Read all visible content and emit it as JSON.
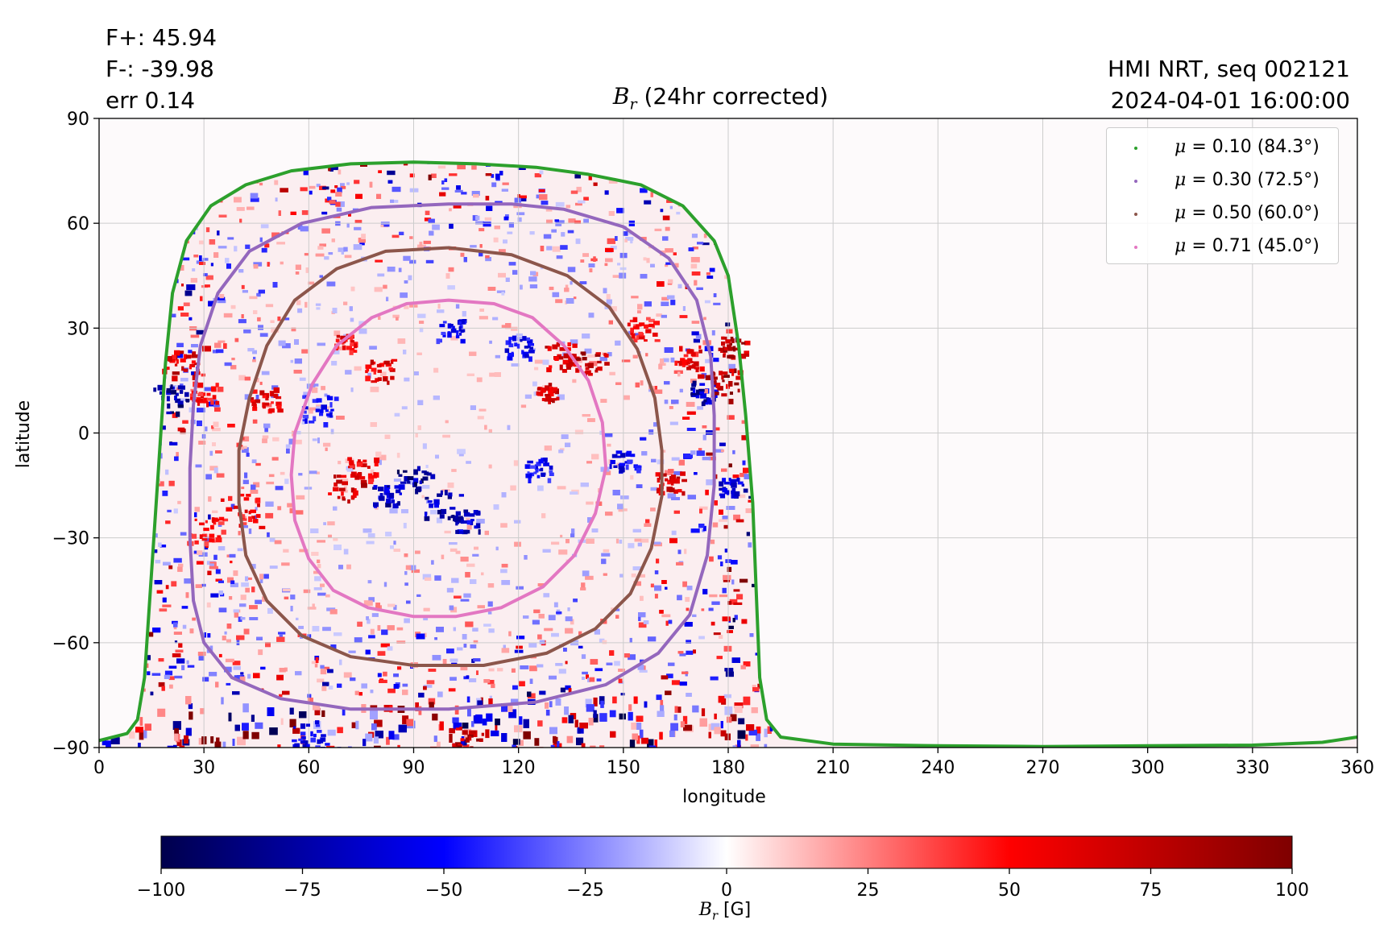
{
  "stats": {
    "flux_plus": "F+: 45.94",
    "flux_minus": "F-: -39.98",
    "error": "err 0.14"
  },
  "info": {
    "source": "HMI NRT, seq 002121",
    "timestamp": "2024-04-01 16:00:00"
  },
  "colors": {
    "mu_010": "#2ca02c",
    "mu_030": "#9467bd",
    "mu_050": "#8c564b",
    "mu_071": "#e377c2",
    "cmap_negative": "#00004c",
    "cmap_zero": "#ffffff",
    "cmap_positive": "#7f0000",
    "grid": "#cccccc"
  },
  "chart_data": {
    "type": "heatmap",
    "title_symbol": "B",
    "title_subscript": "r",
    "title_suffix": " (24hr corrected)",
    "xlabel": "longitude",
    "ylabel": "latitude",
    "xlim": [
      0,
      360
    ],
    "ylim": [
      -90,
      90
    ],
    "xticks": [
      0,
      30,
      60,
      90,
      120,
      150,
      180,
      210,
      240,
      270,
      300,
      330,
      360
    ],
    "yticks": [
      90,
      60,
      30,
      0,
      -30,
      -60,
      -90
    ],
    "ytick_labels": [
      "90",
      "60",
      "30",
      "0",
      "−30",
      "−60",
      "−90"
    ],
    "grid": true,
    "legend_position": "top-right",
    "legend": [
      {
        "mu": "0.10",
        "label_prefix": "= 0.10 (84.3",
        "label_suffix": ")",
        "color_key": "mu_010"
      },
      {
        "mu": "0.30",
        "label_prefix": "= 0.30 (72.5",
        "label_suffix": ")",
        "color_key": "mu_030"
      },
      {
        "mu": "0.50",
        "label_prefix": "= 0.50 (60.0",
        "label_suffix": ")",
        "color_key": "mu_050"
      },
      {
        "mu": "0.71",
        "label_prefix": "= 0.71 (45.0",
        "label_suffix": ")",
        "color_key": "mu_071"
      }
    ],
    "mu_contours": [
      {
        "name": "mu_010",
        "points": [
          [
            0,
            -88
          ],
          [
            8,
            -86
          ],
          [
            11,
            -82
          ],
          [
            13,
            -70
          ],
          [
            15,
            -40
          ],
          [
            17,
            -10
          ],
          [
            19,
            20
          ],
          [
            21,
            40
          ],
          [
            25,
            55
          ],
          [
            32,
            65
          ],
          [
            42,
            71
          ],
          [
            55,
            75
          ],
          [
            72,
            77
          ],
          [
            90,
            77.5
          ],
          [
            108,
            77
          ],
          [
            125,
            76
          ],
          [
            140,
            74
          ],
          [
            155,
            71
          ],
          [
            167,
            65
          ],
          [
            176,
            55
          ],
          [
            180,
            45
          ],
          [
            183,
            25
          ],
          [
            185,
            5
          ],
          [
            187,
            -20
          ],
          [
            188,
            -45
          ],
          [
            189,
            -70
          ],
          [
            191,
            -82
          ],
          [
            195,
            -87
          ],
          [
            210,
            -89
          ],
          [
            240,
            -89.5
          ],
          [
            270,
            -89.7
          ],
          [
            300,
            -89.5
          ],
          [
            330,
            -89.3
          ],
          [
            350,
            -88.5
          ],
          [
            360,
            -87
          ]
        ]
      },
      {
        "name": "mu_030",
        "points": [
          [
            100,
            65.5
          ],
          [
            78,
            64.5
          ],
          [
            58,
            60
          ],
          [
            43,
            52
          ],
          [
            34,
            40
          ],
          [
            29,
            25
          ],
          [
            27,
            8
          ],
          [
            26,
            -10
          ],
          [
            26,
            -30
          ],
          [
            27,
            -48
          ],
          [
            30,
            -60
          ],
          [
            38,
            -70
          ],
          [
            52,
            -76
          ],
          [
            72,
            -79
          ],
          [
            100,
            -79
          ],
          [
            125,
            -77
          ],
          [
            145,
            -72
          ],
          [
            160,
            -63
          ],
          [
            169,
            -52
          ],
          [
            174,
            -35
          ],
          [
            176,
            -15
          ],
          [
            176,
            5
          ],
          [
            175,
            22
          ],
          [
            171,
            38
          ],
          [
            163,
            50
          ],
          [
            150,
            59
          ],
          [
            133,
            64
          ],
          [
            118,
            65.5
          ],
          [
            100,
            65.5
          ]
        ]
      },
      {
        "name": "mu_050",
        "points": [
          [
            100,
            53
          ],
          [
            82,
            52
          ],
          [
            68,
            47
          ],
          [
            56,
            38
          ],
          [
            48,
            25
          ],
          [
            43,
            10
          ],
          [
            40,
            -5
          ],
          [
            40,
            -20
          ],
          [
            42,
            -35
          ],
          [
            48,
            -48
          ],
          [
            58,
            -58
          ],
          [
            72,
            -64
          ],
          [
            90,
            -66.5
          ],
          [
            110,
            -66.5
          ],
          [
            128,
            -63
          ],
          [
            142,
            -56
          ],
          [
            152,
            -46
          ],
          [
            158,
            -33
          ],
          [
            161,
            -18
          ],
          [
            161,
            -5
          ],
          [
            159,
            10
          ],
          [
            154,
            24
          ],
          [
            146,
            36
          ],
          [
            134,
            45
          ],
          [
            118,
            51
          ],
          [
            100,
            53
          ]
        ]
      },
      {
        "name": "mu_071",
        "points": [
          [
            100,
            38
          ],
          [
            88,
            37
          ],
          [
            78,
            33
          ],
          [
            68,
            25
          ],
          [
            61,
            14
          ],
          [
            56,
            0
          ],
          [
            55,
            -12
          ],
          [
            56,
            -25
          ],
          [
            60,
            -36
          ],
          [
            67,
            -45
          ],
          [
            77,
            -50
          ],
          [
            90,
            -52.5
          ],
          [
            102,
            -52.5
          ],
          [
            115,
            -50
          ],
          [
            127,
            -44
          ],
          [
            136,
            -35
          ],
          [
            142,
            -23
          ],
          [
            145,
            -10
          ],
          [
            144,
            3
          ],
          [
            140,
            15
          ],
          [
            133,
            25
          ],
          [
            124,
            33
          ],
          [
            113,
            37
          ],
          [
            100,
            38
          ]
        ]
      }
    ],
    "magnetogram_regions": [
      {
        "lon": 20,
        "lat": 10,
        "br": -95,
        "size": 5
      },
      {
        "lon": 23,
        "lat": 20,
        "br": 70,
        "size": 5
      },
      {
        "lon": 30,
        "lat": 12,
        "br": 60,
        "size": 4
      },
      {
        "lon": 47,
        "lat": 10,
        "br": 70,
        "size": 4
      },
      {
        "lon": 40,
        "lat": -22,
        "br": 60,
        "size": 6
      },
      {
        "lon": 30,
        "lat": -28,
        "br": 55,
        "size": 5
      },
      {
        "lon": 63,
        "lat": 7,
        "br": -55,
        "size": 5
      },
      {
        "lon": 70,
        "lat": 26,
        "br": 65,
        "size": 3
      },
      {
        "lon": 70,
        "lat": -15,
        "br": 80,
        "size": 5
      },
      {
        "lon": 80,
        "lat": 18,
        "br": 70,
        "size": 4
      },
      {
        "lon": 75,
        "lat": -10,
        "br": 65,
        "size": 4
      },
      {
        "lon": 90,
        "lat": -13,
        "br": -90,
        "size": 5
      },
      {
        "lon": 98,
        "lat": -20,
        "br": -85,
        "size": 5
      },
      {
        "lon": 82,
        "lat": -18,
        "br": -80,
        "size": 4
      },
      {
        "lon": 105,
        "lat": -25,
        "br": -75,
        "size": 4
      },
      {
        "lon": 100,
        "lat": 30,
        "br": -60,
        "size": 4
      },
      {
        "lon": 120,
        "lat": 25,
        "br": -65,
        "size": 4
      },
      {
        "lon": 132,
        "lat": 22,
        "br": 75,
        "size": 5
      },
      {
        "lon": 140,
        "lat": 20,
        "br": 85,
        "size": 5
      },
      {
        "lon": 128,
        "lat": 12,
        "br": 80,
        "size": 3
      },
      {
        "lon": 125,
        "lat": -10,
        "br": -60,
        "size": 4
      },
      {
        "lon": 150,
        "lat": -8,
        "br": -65,
        "size": 4
      },
      {
        "lon": 155,
        "lat": 30,
        "br": 55,
        "size": 4
      },
      {
        "lon": 163,
        "lat": -14,
        "br": 75,
        "size": 4
      },
      {
        "lon": 168,
        "lat": 22,
        "br": 70,
        "size": 4
      },
      {
        "lon": 172,
        "lat": 12,
        "br": -80,
        "size": 4
      },
      {
        "lon": 178,
        "lat": 15,
        "br": 95,
        "size": 5
      },
      {
        "lon": 181,
        "lat": 25,
        "br": 90,
        "size": 4
      },
      {
        "lon": 180,
        "lat": -15,
        "br": -70,
        "size": 3
      },
      {
        "lon": 105,
        "lat": -88,
        "br": 85,
        "size": 5
      },
      {
        "lon": 60,
        "lat": -86,
        "br": -60,
        "size": 5
      }
    ],
    "colorbar": {
      "min": -100,
      "max": 100,
      "ticks": [
        -100,
        -75,
        -50,
        -25,
        0,
        25,
        50,
        75,
        100
      ],
      "tick_labels": [
        "−100",
        "−75",
        "−50",
        "−25",
        "0",
        "25",
        "50",
        "75",
        "100"
      ],
      "label_symbol": "B",
      "label_subscript": "r",
      "label_unit": " [G]"
    }
  }
}
